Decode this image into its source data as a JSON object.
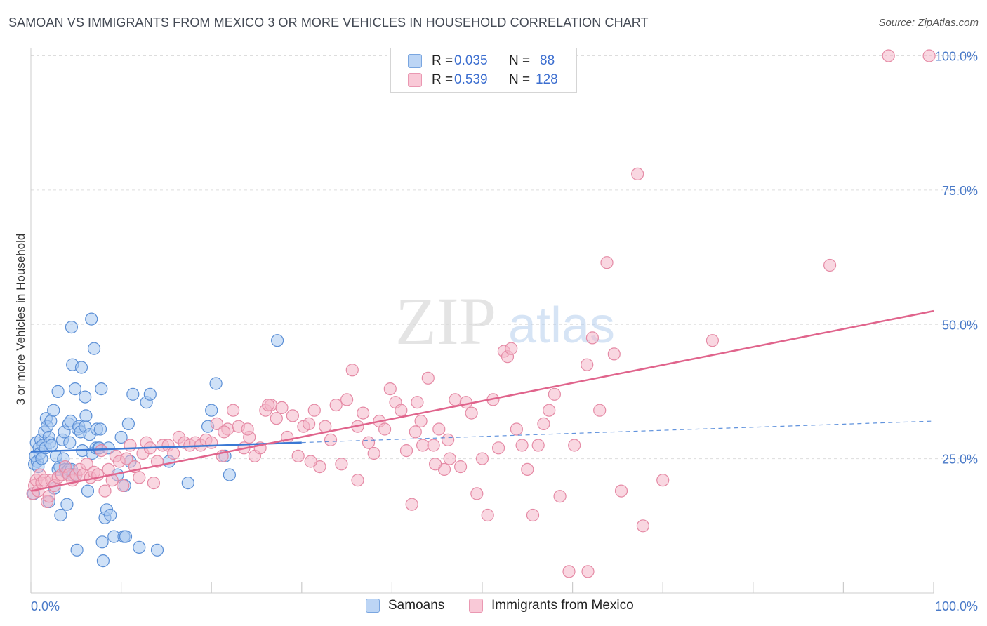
{
  "title": "SAMOAN VS IMMIGRANTS FROM MEXICO 3 OR MORE VEHICLES IN HOUSEHOLD CORRELATION CHART",
  "source": "Source: ZipAtlas.com",
  "watermark": {
    "zip": "ZIP",
    "atlas": "atlas"
  },
  "colors": {
    "samoans_fill": "#a8c8f0",
    "samoans_stroke": "#5b8fd6",
    "samoans_line": "#3a78d4",
    "mexico_fill": "#f4b6c8",
    "mexico_stroke": "#e58aa5",
    "mexico_line": "#e0648c",
    "tick_label": "#4a7ac8",
    "grid": "#dddddd"
  },
  "legend": {
    "rows": [
      {
        "r_label": "R =",
        "r_value": "0.035",
        "n_label": "N =",
        "n_value": "88"
      },
      {
        "r_label": "R =",
        "r_value": "0.539",
        "n_label": "N =",
        "n_value": "128"
      }
    ]
  },
  "bottom_legend": {
    "samoans": "Samoans",
    "mexico": "Immigrants from Mexico"
  },
  "chart_data": {
    "type": "scatter",
    "title": "SAMOAN VS IMMIGRANTS FROM MEXICO 3 OR MORE VEHICLES IN HOUSEHOLD CORRELATION CHART",
    "xlabel": "",
    "ylabel": "3 or more Vehicles in Household",
    "xlim": [
      0,
      100
    ],
    "ylim": [
      0,
      102
    ],
    "x_tick_labels": [
      "0.0%",
      "100.0%"
    ],
    "y_ticks": [
      25,
      50,
      75,
      100
    ],
    "y_tick_labels": [
      "25.0%",
      "50.0%",
      "75.0%",
      "100.0%"
    ],
    "grid": true,
    "series": [
      {
        "name": "Samoans",
        "r": 0.035,
        "n": 88,
        "trend": {
          "x": [
            0,
            30
          ],
          "y": [
            26.3,
            28.0
          ],
          "dashed_extension_to_x": 100,
          "dashed_end_y": 32.0
        },
        "points": [
          [
            0.3,
            18.5
          ],
          [
            0.4,
            24
          ],
          [
            0.5,
            25.5
          ],
          [
            0.6,
            28
          ],
          [
            0.7,
            24.5
          ],
          [
            0.8,
            23.5
          ],
          [
            0.9,
            27
          ],
          [
            1,
            26
          ],
          [
            1.1,
            28.5
          ],
          [
            1.2,
            25
          ],
          [
            1.3,
            27.5
          ],
          [
            1.5,
            30
          ],
          [
            1.6,
            27
          ],
          [
            1.7,
            32.5
          ],
          [
            1.8,
            31
          ],
          [
            2,
            29
          ],
          [
            2,
            17
          ],
          [
            2.1,
            28
          ],
          [
            2.2,
            32
          ],
          [
            2.3,
            27.5
          ],
          [
            2.5,
            34
          ],
          [
            2.6,
            19.5
          ],
          [
            2.8,
            25.5
          ],
          [
            3,
            23
          ],
          [
            3,
            37.5
          ],
          [
            3.2,
            23.5
          ],
          [
            3.3,
            14.5
          ],
          [
            3.5,
            28.5
          ],
          [
            3.6,
            25
          ],
          [
            3.7,
            30
          ],
          [
            3.8,
            23
          ],
          [
            3.9,
            22.5
          ],
          [
            4,
            22.5
          ],
          [
            4,
            16.5
          ],
          [
            4.2,
            31.5
          ],
          [
            4.2,
            23
          ],
          [
            4.3,
            28
          ],
          [
            4.4,
            32
          ],
          [
            4.5,
            23
          ],
          [
            4.6,
            22
          ],
          [
            4.5,
            49.5
          ],
          [
            4.6,
            42.5
          ],
          [
            4.9,
            38
          ],
          [
            5,
            22
          ],
          [
            5.1,
            8
          ],
          [
            5.2,
            30.5
          ],
          [
            5.3,
            31
          ],
          [
            5.5,
            30
          ],
          [
            5.6,
            42
          ],
          [
            5.7,
            26.5
          ],
          [
            6,
            31
          ],
          [
            6,
            36.5
          ],
          [
            6.1,
            33
          ],
          [
            6.3,
            19
          ],
          [
            6.5,
            29.5
          ],
          [
            6.7,
            51
          ],
          [
            6.8,
            26
          ],
          [
            7,
            45.5
          ],
          [
            7.2,
            27
          ],
          [
            7.3,
            30.5
          ],
          [
            7.5,
            27
          ],
          [
            7.6,
            27
          ],
          [
            7.7,
            30.5
          ],
          [
            7.8,
            38
          ],
          [
            7.9,
            9.5
          ],
          [
            8,
            6
          ],
          [
            8.2,
            14
          ],
          [
            8.4,
            15.5
          ],
          [
            8.6,
            27
          ],
          [
            8.8,
            14.5
          ],
          [
            9.2,
            10.5
          ],
          [
            9.6,
            22
          ],
          [
            10,
            29
          ],
          [
            10.3,
            10.5
          ],
          [
            10.4,
            20
          ],
          [
            10.5,
            10.5
          ],
          [
            10.8,
            31.5
          ],
          [
            11,
            24.5
          ],
          [
            11.3,
            37
          ],
          [
            12,
            8.5
          ],
          [
            12.8,
            35.5
          ],
          [
            13.2,
            37
          ],
          [
            14,
            8
          ],
          [
            15.3,
            24.5
          ],
          [
            17.4,
            20.5
          ],
          [
            19.6,
            31
          ],
          [
            20,
            34
          ],
          [
            20.5,
            39
          ],
          [
            21.5,
            25.5
          ],
          [
            22,
            22
          ],
          [
            27.3,
            47
          ]
        ]
      },
      {
        "name": "Immigrants from Mexico",
        "r": 0.539,
        "n": 128,
        "trend": {
          "x": [
            0,
            100
          ],
          "y": [
            19,
            52.5
          ]
        },
        "points": [
          [
            0.2,
            18.5
          ],
          [
            0.4,
            20
          ],
          [
            0.6,
            21
          ],
          [
            0.8,
            19
          ],
          [
            1,
            22
          ],
          [
            1.2,
            20.5
          ],
          [
            1.5,
            21
          ],
          [
            1.8,
            17
          ],
          [
            2,
            18
          ],
          [
            2.3,
            21
          ],
          [
            2.6,
            20
          ],
          [
            3,
            21.5
          ],
          [
            3.4,
            22
          ],
          [
            3.8,
            23.5
          ],
          [
            4.2,
            22
          ],
          [
            4.6,
            21
          ],
          [
            5,
            22
          ],
          [
            5.4,
            23
          ],
          [
            5.8,
            22
          ],
          [
            6.2,
            24
          ],
          [
            6.6,
            21.5
          ],
          [
            7,
            22.5
          ],
          [
            7.4,
            22
          ],
          [
            7.8,
            26.5
          ],
          [
            8.2,
            19
          ],
          [
            8.6,
            23
          ],
          [
            9,
            21
          ],
          [
            9.4,
            25.5
          ],
          [
            9.8,
            24.5
          ],
          [
            10.2,
            20
          ],
          [
            10.6,
            25
          ],
          [
            11,
            27.5
          ],
          [
            11.5,
            23.5
          ],
          [
            12,
            21.5
          ],
          [
            12.4,
            26
          ],
          [
            12.8,
            28
          ],
          [
            13.2,
            27
          ],
          [
            13.6,
            20.5
          ],
          [
            14,
            24.5
          ],
          [
            14.6,
            27.5
          ],
          [
            15.2,
            27.5
          ],
          [
            15.8,
            26
          ],
          [
            16.4,
            29
          ],
          [
            17,
            28
          ],
          [
            17.6,
            27.5
          ],
          [
            18.2,
            28
          ],
          [
            18.8,
            27.5
          ],
          [
            19.4,
            28.5
          ],
          [
            20,
            28
          ],
          [
            20.6,
            31.5
          ],
          [
            21.2,
            25.5
          ],
          [
            21.8,
            30.5
          ],
          [
            22.4,
            34
          ],
          [
            23,
            31
          ],
          [
            23.6,
            27
          ],
          [
            24.2,
            29
          ],
          [
            24.8,
            25.5
          ],
          [
            25.4,
            27
          ],
          [
            26,
            34
          ],
          [
            26.6,
            35
          ],
          [
            27.2,
            32.5
          ],
          [
            27.8,
            34.5
          ],
          [
            28.4,
            29
          ],
          [
            29,
            33
          ],
          [
            29.6,
            25.5
          ],
          [
            30.2,
            31
          ],
          [
            30.8,
            31.5
          ],
          [
            31.4,
            34
          ],
          [
            32,
            23.5
          ],
          [
            32.6,
            31
          ],
          [
            33.2,
            28.5
          ],
          [
            33.8,
            35
          ],
          [
            34.4,
            24
          ],
          [
            35,
            36
          ],
          [
            35.6,
            41.5
          ],
          [
            36.2,
            31
          ],
          [
            36.8,
            33.5
          ],
          [
            37.4,
            28
          ],
          [
            38,
            26
          ],
          [
            38.6,
            32
          ],
          [
            39.2,
            30.5
          ],
          [
            39.8,
            38
          ],
          [
            40.4,
            35.5
          ],
          [
            41,
            34
          ],
          [
            41.6,
            26.5
          ],
          [
            42.2,
            16.5
          ],
          [
            42.8,
            35.5
          ],
          [
            43.4,
            27.5
          ],
          [
            44,
            40
          ],
          [
            44.6,
            27.5
          ],
          [
            45.2,
            30.5
          ],
          [
            45.8,
            23
          ],
          [
            46.4,
            25
          ],
          [
            47,
            36
          ],
          [
            47.6,
            23.5
          ],
          [
            48.2,
            35.5
          ],
          [
            48.8,
            33.5
          ],
          [
            49.4,
            18.5
          ],
          [
            50,
            25
          ],
          [
            50.6,
            14.5
          ],
          [
            51.2,
            36
          ],
          [
            51.8,
            27
          ],
          [
            52.4,
            45
          ],
          [
            52.8,
            44
          ],
          [
            53.2,
            45.5
          ],
          [
            53.8,
            30.5
          ],
          [
            54.4,
            27.5
          ],
          [
            55,
            23
          ],
          [
            55.6,
            14.5
          ],
          [
            56.2,
            27.5
          ],
          [
            56.8,
            31.5
          ],
          [
            57.4,
            34
          ],
          [
            58,
            37
          ],
          [
            58.6,
            18
          ],
          [
            59.6,
            4
          ],
          [
            61.7,
            4
          ],
          [
            61.6,
            42.5
          ],
          [
            62.2,
            47.5
          ],
          [
            63,
            34
          ],
          [
            63.8,
            61.5
          ],
          [
            64.6,
            44.5
          ],
          [
            65.4,
            19
          ],
          [
            67.2,
            78
          ],
          [
            67.8,
            12.5
          ],
          [
            70,
            21
          ],
          [
            75.5,
            47
          ],
          [
            88.5,
            61
          ],
          [
            95,
            100
          ],
          [
            99.5,
            100
          ],
          [
            60.2,
            27.5
          ],
          [
            42.6,
            30
          ],
          [
            43.2,
            32
          ],
          [
            44.8,
            24
          ],
          [
            46.2,
            28.5
          ],
          [
            36.2,
            21
          ],
          [
            31,
            24.5
          ],
          [
            26.3,
            35
          ],
          [
            24,
            30.5
          ],
          [
            21.4,
            30
          ]
        ]
      }
    ]
  }
}
